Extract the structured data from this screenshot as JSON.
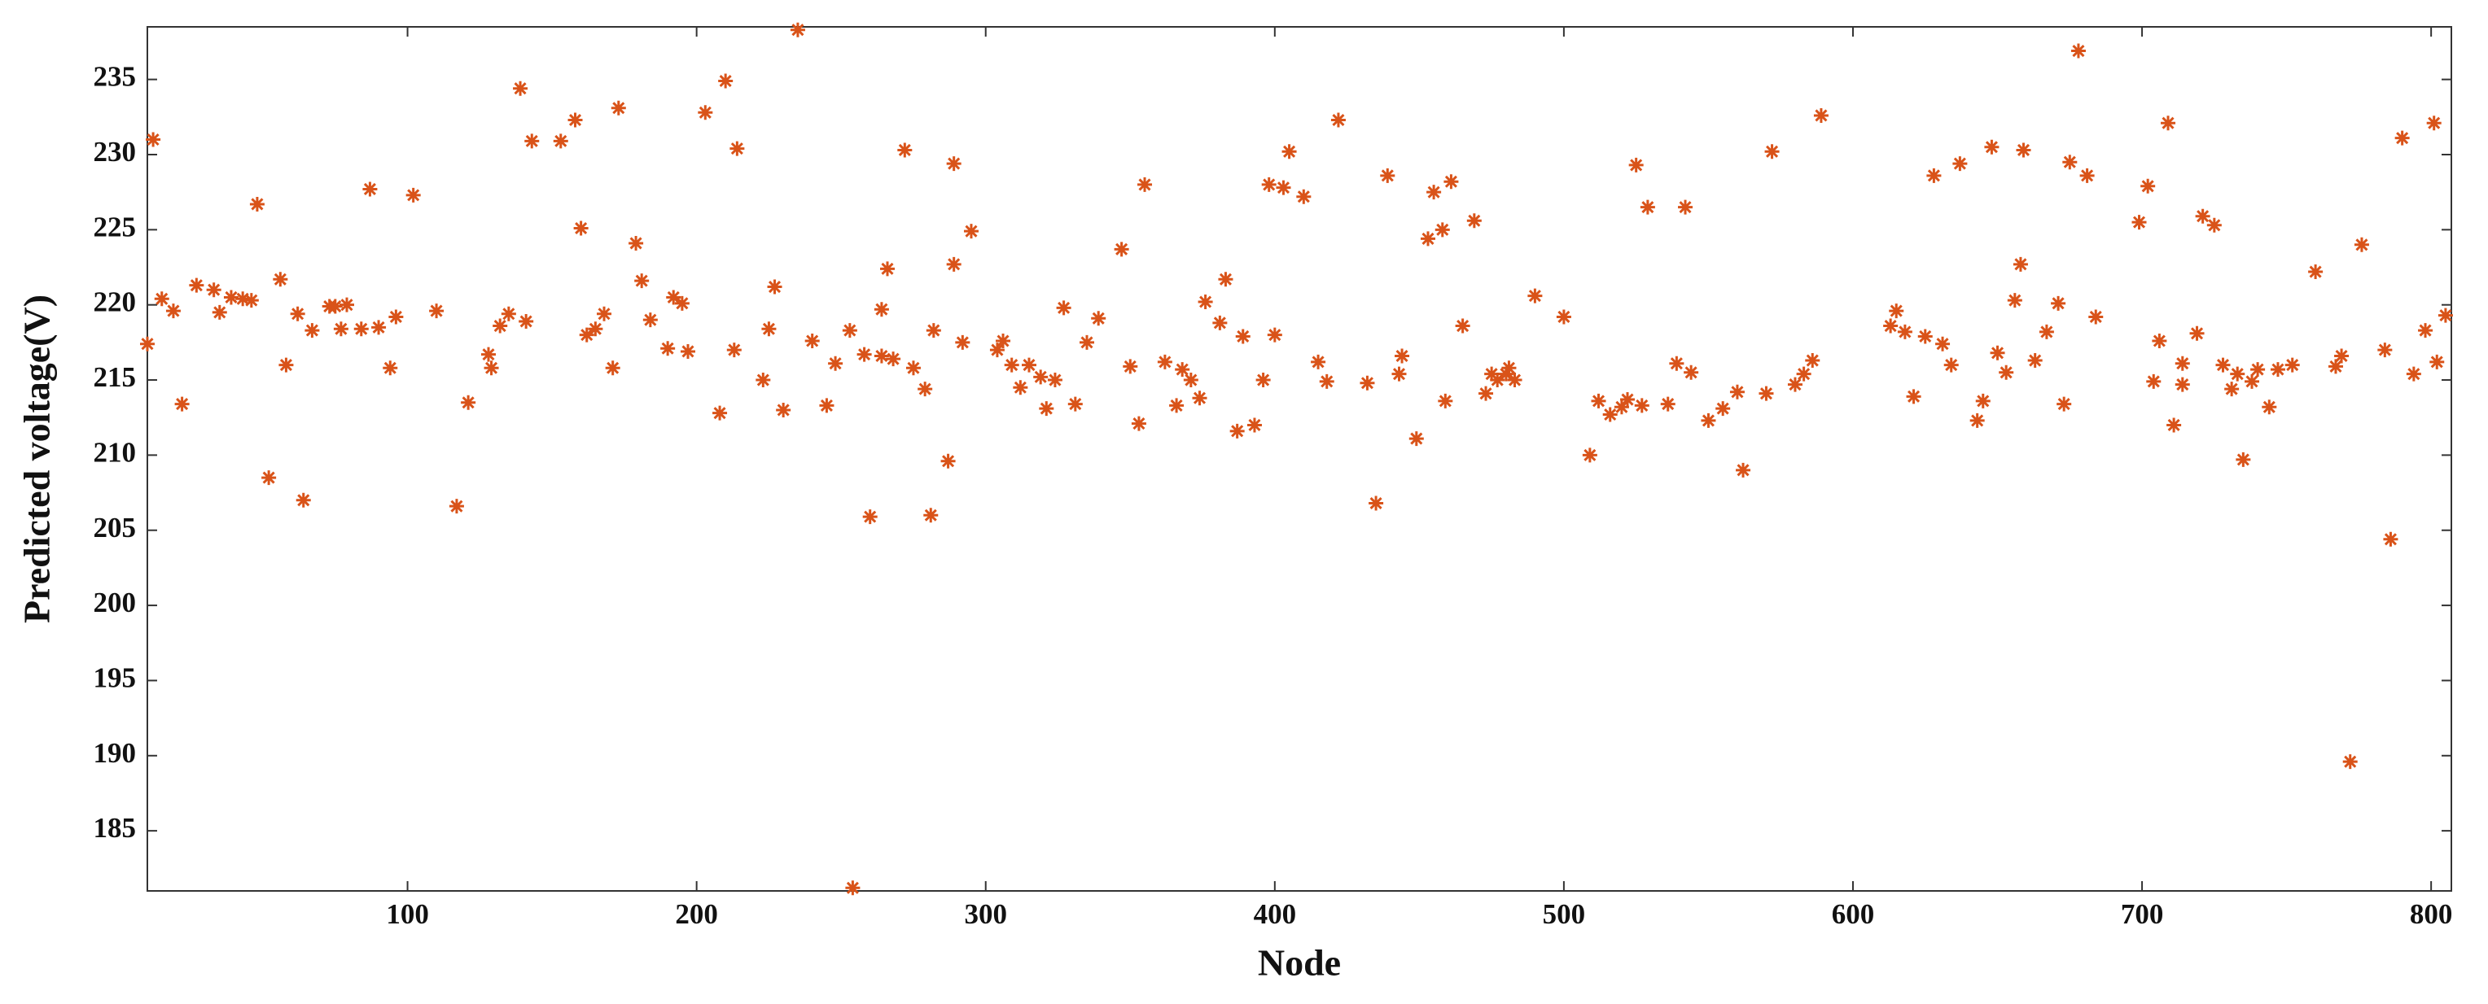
{
  "chart_data": {
    "type": "scatter",
    "xlabel": "Node",
    "ylabel": "Predicted voltage(V)",
    "color": "#d95319",
    "x": [
      10,
      12,
      15,
      19,
      22,
      27,
      33,
      35,
      39,
      43,
      46,
      48,
      52,
      56,
      58,
      62,
      64,
      67,
      73,
      75,
      77,
      79,
      84,
      87,
      90,
      94,
      96,
      102,
      110,
      117,
      121,
      128,
      129,
      132,
      135,
      139,
      141,
      143,
      153,
      158,
      160,
      162,
      165,
      168,
      171,
      173,
      179,
      181,
      184,
      190,
      192,
      195,
      197,
      203,
      208,
      210,
      213,
      214,
      223,
      225,
      227,
      230,
      235,
      240,
      245,
      248,
      253,
      254,
      258,
      260,
      264,
      266,
      264,
      268,
      272,
      275,
      279,
      281,
      282,
      287,
      289,
      289,
      292,
      295,
      304,
      306,
      309,
      312,
      315,
      319,
      321,
      324,
      327,
      331,
      335,
      339,
      347,
      350,
      353,
      355,
      362,
      366,
      368,
      371,
      374,
      376,
      381,
      383,
      387,
      389,
      393,
      396,
      398,
      400,
      403,
      405,
      410,
      415,
      418,
      422,
      432,
      435,
      439,
      443,
      444,
      449,
      453,
      455,
      458,
      459,
      461,
      465,
      469,
      473,
      475,
      477,
      480,
      483,
      481,
      490,
      500,
      509,
      512,
      516,
      520,
      522,
      525,
      527,
      529,
      536,
      539,
      542,
      544,
      550,
      555,
      560,
      562,
      570,
      572,
      580,
      583,
      586,
      589,
      613,
      615,
      618,
      621,
      625,
      628,
      631,
      634,
      637,
      643,
      645,
      648,
      650,
      653,
      656,
      658,
      659,
      663,
      667,
      671,
      673,
      675,
      678,
      681,
      684,
      699,
      702,
      704,
      706,
      709,
      711,
      714,
      714,
      719,
      721,
      725,
      728,
      731,
      733,
      735,
      738,
      740,
      744,
      747,
      752,
      760,
      767,
      769,
      772,
      776,
      784,
      786,
      790,
      794,
      798,
      801,
      802,
      805
    ],
    "values": [
      217.4,
      231.0,
      220.4,
      219.6,
      213.4,
      221.3,
      221.0,
      219.5,
      220.5,
      220.4,
      220.3,
      226.7,
      208.5,
      221.7,
      216.0,
      219.4,
      207.0,
      218.3,
      219.9,
      219.9,
      218.4,
      220.0,
      218.4,
      227.7,
      218.5,
      215.8,
      219.2,
      227.3,
      219.6,
      206.6,
      213.5,
      216.7,
      215.8,
      218.6,
      219.4,
      234.4,
      218.9,
      230.9,
      230.9,
      232.3,
      225.1,
      218.0,
      218.4,
      219.4,
      215.8,
      233.1,
      224.1,
      221.6,
      219.0,
      217.1,
      220.5,
      220.1,
      216.9,
      232.8,
      212.8,
      234.9,
      217.0,
      230.4,
      215.0,
      218.4,
      221.2,
      213.0,
      238.3,
      217.6,
      213.3,
      216.1,
      218.3,
      181.2,
      216.7,
      205.9,
      219.7,
      222.4,
      216.6,
      216.4,
      230.3,
      215.8,
      214.4,
      206.0,
      218.3,
      209.6,
      229.4,
      222.7,
      217.5,
      224.9,
      217.0,
      217.6,
      216.0,
      214.5,
      216.0,
      215.2,
      213.1,
      215.0,
      219.8,
      213.4,
      217.5,
      219.1,
      223.7,
      215.9,
      212.1,
      228.0,
      216.2,
      213.3,
      215.7,
      215.0,
      213.8,
      220.2,
      218.8,
      221.7,
      211.6,
      217.9,
      212.0,
      215.0,
      228.0,
      218.0,
      227.8,
      230.2,
      227.2,
      216.2,
      214.9,
      232.3,
      214.8,
      206.8,
      228.6,
      215.4,
      216.6,
      211.1,
      224.4,
      227.5,
      225.0,
      213.6,
      228.2,
      218.6,
      225.6,
      214.1,
      215.4,
      215.0,
      215.4,
      215.0,
      215.8,
      220.6,
      219.2,
      210.0,
      213.6,
      212.7,
      213.2,
      213.7,
      229.3,
      213.3,
      226.5,
      213.4,
      216.1,
      226.5,
      215.5,
      212.3,
      213.1,
      214.2,
      209.0,
      214.1,
      230.2,
      214.7,
      215.4,
      216.3,
      232.6,
      218.6,
      219.6,
      218.2,
      213.9,
      217.9,
      228.6,
      217.4,
      216.0,
      229.4,
      212.3,
      213.6,
      230.5,
      216.8,
      215.5,
      220.3,
      222.7,
      230.3,
      216.3,
      218.2,
      220.1,
      213.4,
      229.5,
      236.9,
      228.6,
      219.2,
      225.5,
      227.9,
      214.9,
      217.6,
      232.1,
      212.0,
      216.1,
      214.7,
      218.1,
      225.9,
      225.3,
      216.0,
      214.4,
      215.4,
      209.7,
      214.9,
      215.7,
      213.2,
      215.7,
      216.0,
      222.2,
      215.9,
      216.6,
      189.6,
      224.0,
      217.0,
      204.4,
      231.1,
      215.4,
      218.3,
      232.1,
      216.2,
      219.3
    ],
    "xlim": [
      10,
      807
    ],
    "ylim": [
      181,
      238.5
    ],
    "xticks": [
      100,
      200,
      300,
      400,
      500,
      600,
      700,
      800
    ],
    "yticks": [
      185,
      190,
      195,
      200,
      205,
      210,
      215,
      220,
      225,
      230,
      235
    ]
  }
}
